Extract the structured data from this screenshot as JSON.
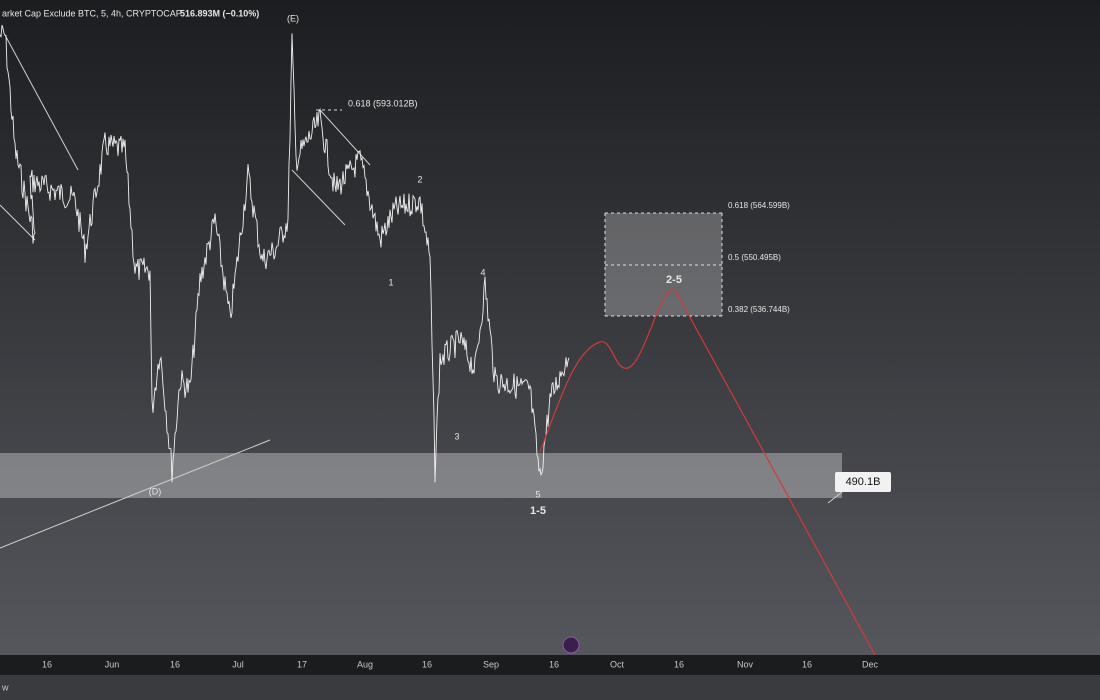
{
  "header": {
    "symbol": "arket Cap Exclude BTC, 5, 4h, CRYPTOCAP",
    "price": "516.893M (−0.10%)"
  },
  "annotations": {
    "wave_e": "(E)",
    "fib_top": "0.618 (593.012B)",
    "wave_2": "2",
    "wave_1": "1",
    "wave_4": "4",
    "wave_3": "3",
    "wave_5": "5",
    "wave_1_5": "1-5",
    "wave_2_5": "2-5",
    "wave_d": "(D)"
  },
  "fib_box": {
    "level_618": "0.618 (564.599B)",
    "level_5": "0.5 (550.495B)",
    "level_382": "0.382 (536.744B)"
  },
  "price_tag": "490.1B",
  "x_axis": [
    "16",
    "Jun",
    "16",
    "Jul",
    "17",
    "Aug",
    "16",
    "Sep",
    "16",
    "Oct",
    "16",
    "Nov",
    "16",
    "Dec"
  ],
  "footer": "w"
}
